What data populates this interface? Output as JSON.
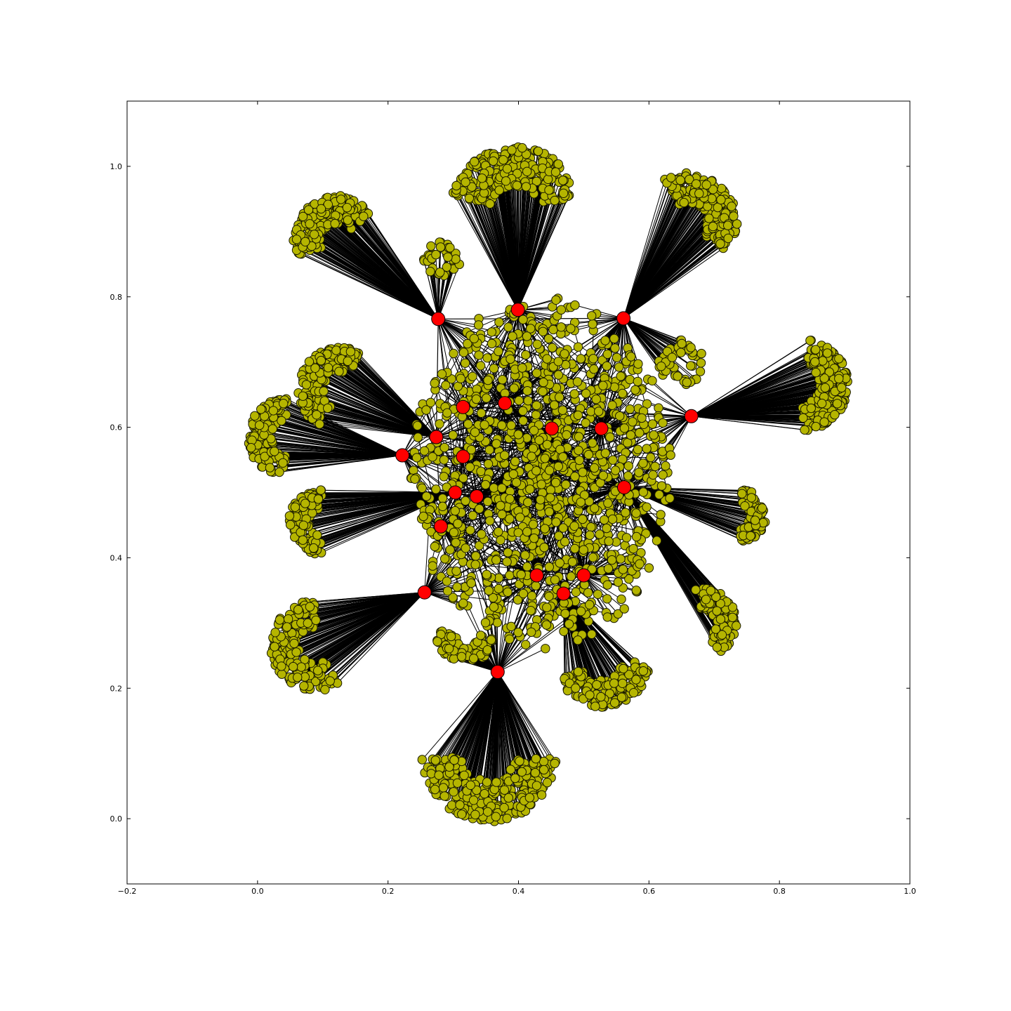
{
  "chart_data": {
    "type": "scatter",
    "subtype": "network-graph",
    "title": "",
    "xlabel": "",
    "ylabel": "",
    "xlim": [
      -0.2,
      1.0
    ],
    "ylim": [
      -0.1,
      1.1
    ],
    "xticks": [
      -0.2,
      0.0,
      0.2,
      0.4,
      0.6,
      0.8,
      1.0
    ],
    "xtick_labels": [
      "−0.2",
      "0.0",
      "0.2",
      "0.4",
      "0.6",
      "0.8",
      "1.0"
    ],
    "yticks": [
      0.0,
      0.2,
      0.4,
      0.6,
      0.8,
      1.0
    ],
    "ytick_labels": [
      "0.0",
      "0.2",
      "0.4",
      "0.6",
      "0.8",
      "1.0"
    ],
    "grid": false,
    "legend": "none",
    "colors": {
      "hub_node": "#ff0000",
      "leaf_node": "#b5b500",
      "node_edge": "#1a1a00",
      "edges": "#000000",
      "axes": "#000000"
    },
    "hub_nodes": [
      {
        "x": 0.277,
        "y": 0.766
      },
      {
        "x": 0.399,
        "y": 0.78
      },
      {
        "x": 0.561,
        "y": 0.767
      },
      {
        "x": 0.665,
        "y": 0.617
      },
      {
        "x": 0.379,
        "y": 0.637
      },
      {
        "x": 0.315,
        "y": 0.631
      },
      {
        "x": 0.451,
        "y": 0.598
      },
      {
        "x": 0.527,
        "y": 0.598
      },
      {
        "x": 0.274,
        "y": 0.585
      },
      {
        "x": 0.222,
        "y": 0.557
      },
      {
        "x": 0.315,
        "y": 0.555
      },
      {
        "x": 0.562,
        "y": 0.508
      },
      {
        "x": 0.303,
        "y": 0.5
      },
      {
        "x": 0.336,
        "y": 0.494
      },
      {
        "x": 0.281,
        "y": 0.448
      },
      {
        "x": 0.428,
        "y": 0.373
      },
      {
        "x": 0.5,
        "y": 0.373
      },
      {
        "x": 0.469,
        "y": 0.345
      },
      {
        "x": 0.256,
        "y": 0.347
      },
      {
        "x": 0.368,
        "y": 0.225
      }
    ],
    "leaf_clusters": [
      {
        "hub": 0,
        "cx": 0.123,
        "cy": 0.885,
        "r": 0.07,
        "a0": 40,
        "a1": 200,
        "count": 180
      },
      {
        "hub": 1,
        "cx": 0.395,
        "cy": 0.93,
        "r": 0.1,
        "a0": 15,
        "a1": 165,
        "count": 260
      },
      {
        "hub": 2,
        "cx": 0.66,
        "cy": 0.915,
        "r": 0.075,
        "a0": -40,
        "a1": 120,
        "count": 200
      },
      {
        "hub": 3,
        "cx": 0.835,
        "cy": 0.665,
        "r": 0.07,
        "a0": -90,
        "a1": 80,
        "count": 200
      },
      {
        "hub": 0,
        "cx": 0.28,
        "cy": 0.855,
        "r": 0.03,
        "a0": 0,
        "a1": 360,
        "count": 40
      },
      {
        "hub": 8,
        "cx": 0.127,
        "cy": 0.658,
        "r": 0.065,
        "a0": 60,
        "a1": 240,
        "count": 170
      },
      {
        "hub": 9,
        "cx": 0.045,
        "cy": 0.585,
        "r": 0.06,
        "a0": 90,
        "a1": 270,
        "count": 140
      },
      {
        "hub": 12,
        "cx": 0.098,
        "cy": 0.455,
        "r": 0.05,
        "a0": 90,
        "a1": 270,
        "count": 120
      },
      {
        "hub": 11,
        "cx": 0.74,
        "cy": 0.465,
        "r": 0.04,
        "a0": -90,
        "a1": 90,
        "count": 90
      },
      {
        "hub": 11,
        "cx": 0.68,
        "cy": 0.3,
        "r": 0.055,
        "a0": -60,
        "a1": 100,
        "count": 130
      },
      {
        "hub": 18,
        "cx": 0.09,
        "cy": 0.265,
        "r": 0.07,
        "a0": 90,
        "a1": 300,
        "count": 190
      },
      {
        "hub": 19,
        "cx": 0.355,
        "cy": 0.1,
        "r": 0.105,
        "a0": 185,
        "a1": 355,
        "count": 260
      },
      {
        "hub": 17,
        "cx": 0.53,
        "cy": 0.24,
        "r": 0.07,
        "a0": 200,
        "a1": 360,
        "count": 160
      },
      {
        "hub": 19,
        "cx": 0.32,
        "cy": 0.29,
        "r": 0.05,
        "a0": 180,
        "a1": 340,
        "count": 80
      },
      {
        "hub": 2,
        "cx": 0.65,
        "cy": 0.7,
        "r": 0.035,
        "a0": 0,
        "a1": 360,
        "count": 50
      }
    ],
    "core_cluster": {
      "cx": 0.435,
      "cy": 0.53,
      "rx": 0.2,
      "ry": 0.27,
      "count": 1100
    }
  }
}
